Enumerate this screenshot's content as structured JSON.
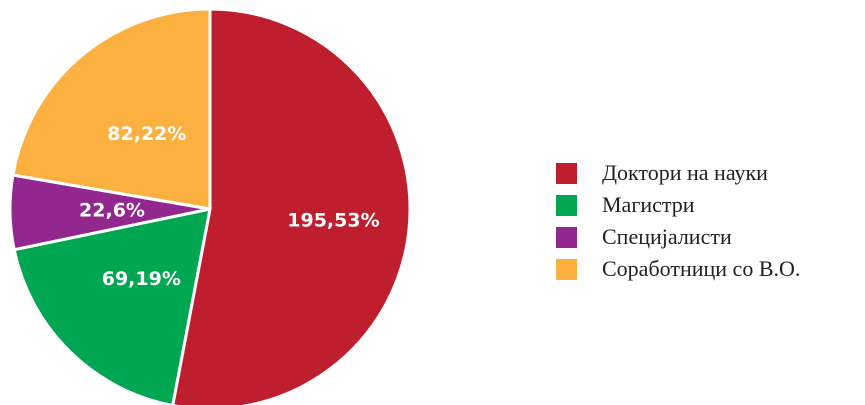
{
  "chart_data": {
    "type": "pie",
    "categories": [
      "Доктори на науки",
      "Магистри",
      "Специјалисти",
      "Соработници со В.О."
    ],
    "values": [
      195,
      69,
      22,
      82
    ],
    "labels": [
      "195,53%",
      "69,19%",
      "22,6%",
      "82,22%"
    ],
    "colors": [
      "#BE1E2D",
      "#00A651",
      "#92278F",
      "#FBB040"
    ],
    "legend_position": "right"
  }
}
